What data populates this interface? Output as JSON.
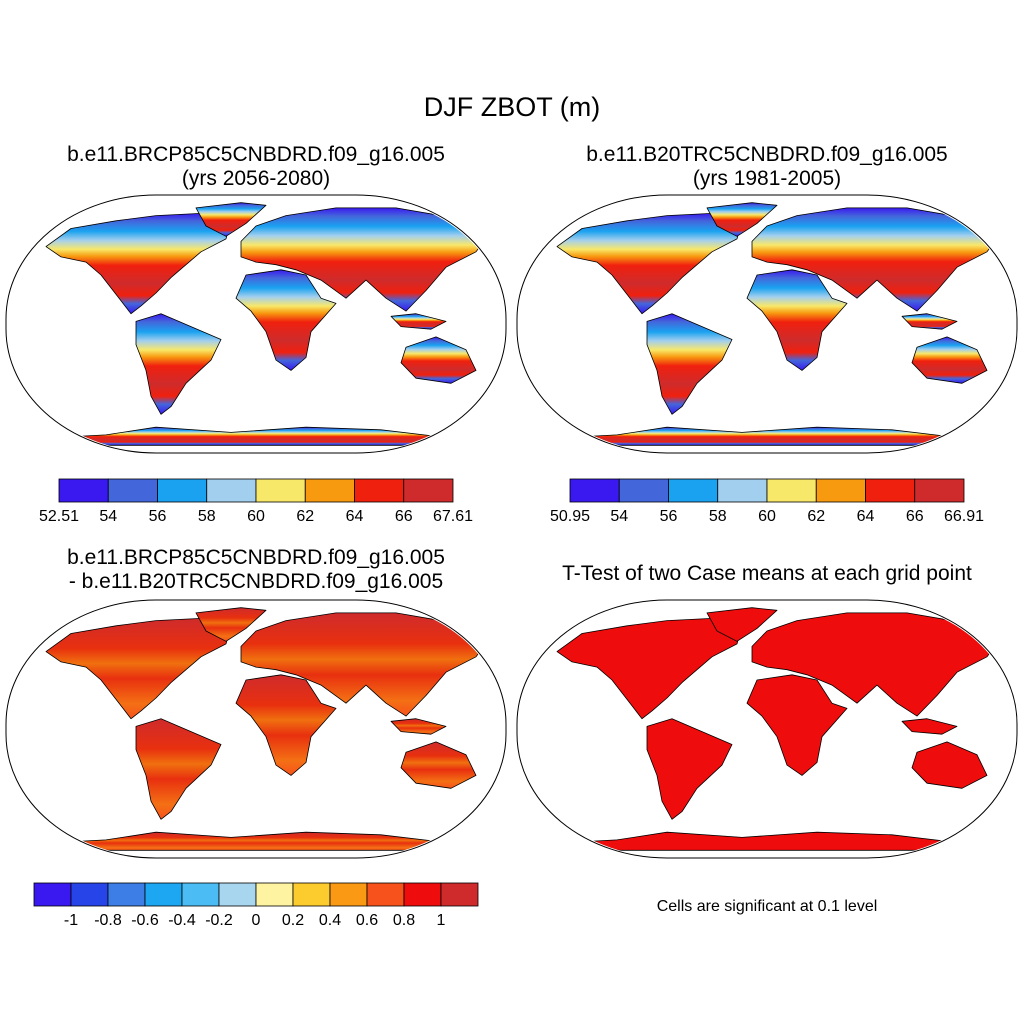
{
  "title": "DJF ZBOT (m)",
  "panels": [
    {
      "id": "p1",
      "title_line1": "b.e11.BRCP85C5CNBDRD.f09_g16.005",
      "title_line2": "(yrs 2056-2080)",
      "colorbar": {
        "colors": [
          "#3a19f0",
          "#4466db",
          "#1aa2f0",
          "#a3cfee",
          "#f8e86a",
          "#f89a10",
          "#f0200e",
          "#cf2b2c"
        ],
        "labels": [
          "52.51",
          "54",
          "56",
          "58",
          "60",
          "62",
          "64",
          "66",
          "67.61"
        ]
      }
    },
    {
      "id": "p2",
      "title_line1": "b.e11.B20TRC5CNBDRD.f09_g16.005",
      "title_line2": "(yrs 1981-2005)",
      "colorbar": {
        "colors": [
          "#3a19f0",
          "#4466db",
          "#1aa2f0",
          "#a3cfee",
          "#f8e86a",
          "#f89a10",
          "#f0200e",
          "#cf2b2c"
        ],
        "labels": [
          "50.95",
          "54",
          "56",
          "58",
          "60",
          "62",
          "64",
          "66",
          "66.91"
        ]
      }
    },
    {
      "id": "p3",
      "title_line1": "b.e11.BRCP85C5CNBDRD.f09_g16.005",
      "title_line2": "- b.e11.B20TRC5CNBDRD.f09_g16.005",
      "colorbar": {
        "colors": [
          "#3a19f0",
          "#2644e8",
          "#3d7de6",
          "#1da6f2",
          "#4cbdf4",
          "#a9d6ef",
          "#fdf3a0",
          "#fccc2e",
          "#fa9a14",
          "#f7521b",
          "#ef0c0c",
          "#cf2b2c"
        ],
        "labels": [
          "-1",
          "-0.8",
          "-0.6",
          "-0.4",
          "-0.2",
          "0",
          "0.2",
          "0.4",
          "0.6",
          "0.8",
          "1"
        ]
      }
    },
    {
      "id": "p4",
      "title_line1": "T-Test of two Case means at each grid point",
      "note": "Cells are significant at 0.1 level"
    }
  ],
  "map_colors": {
    "ocean": "#ffffff",
    "coast": "#000000",
    "diff_land": "#e8300f",
    "diff_north": "#cf2b2c",
    "diff_mid": "#f0700f",
    "ttest_land": "#ef0c0c"
  }
}
